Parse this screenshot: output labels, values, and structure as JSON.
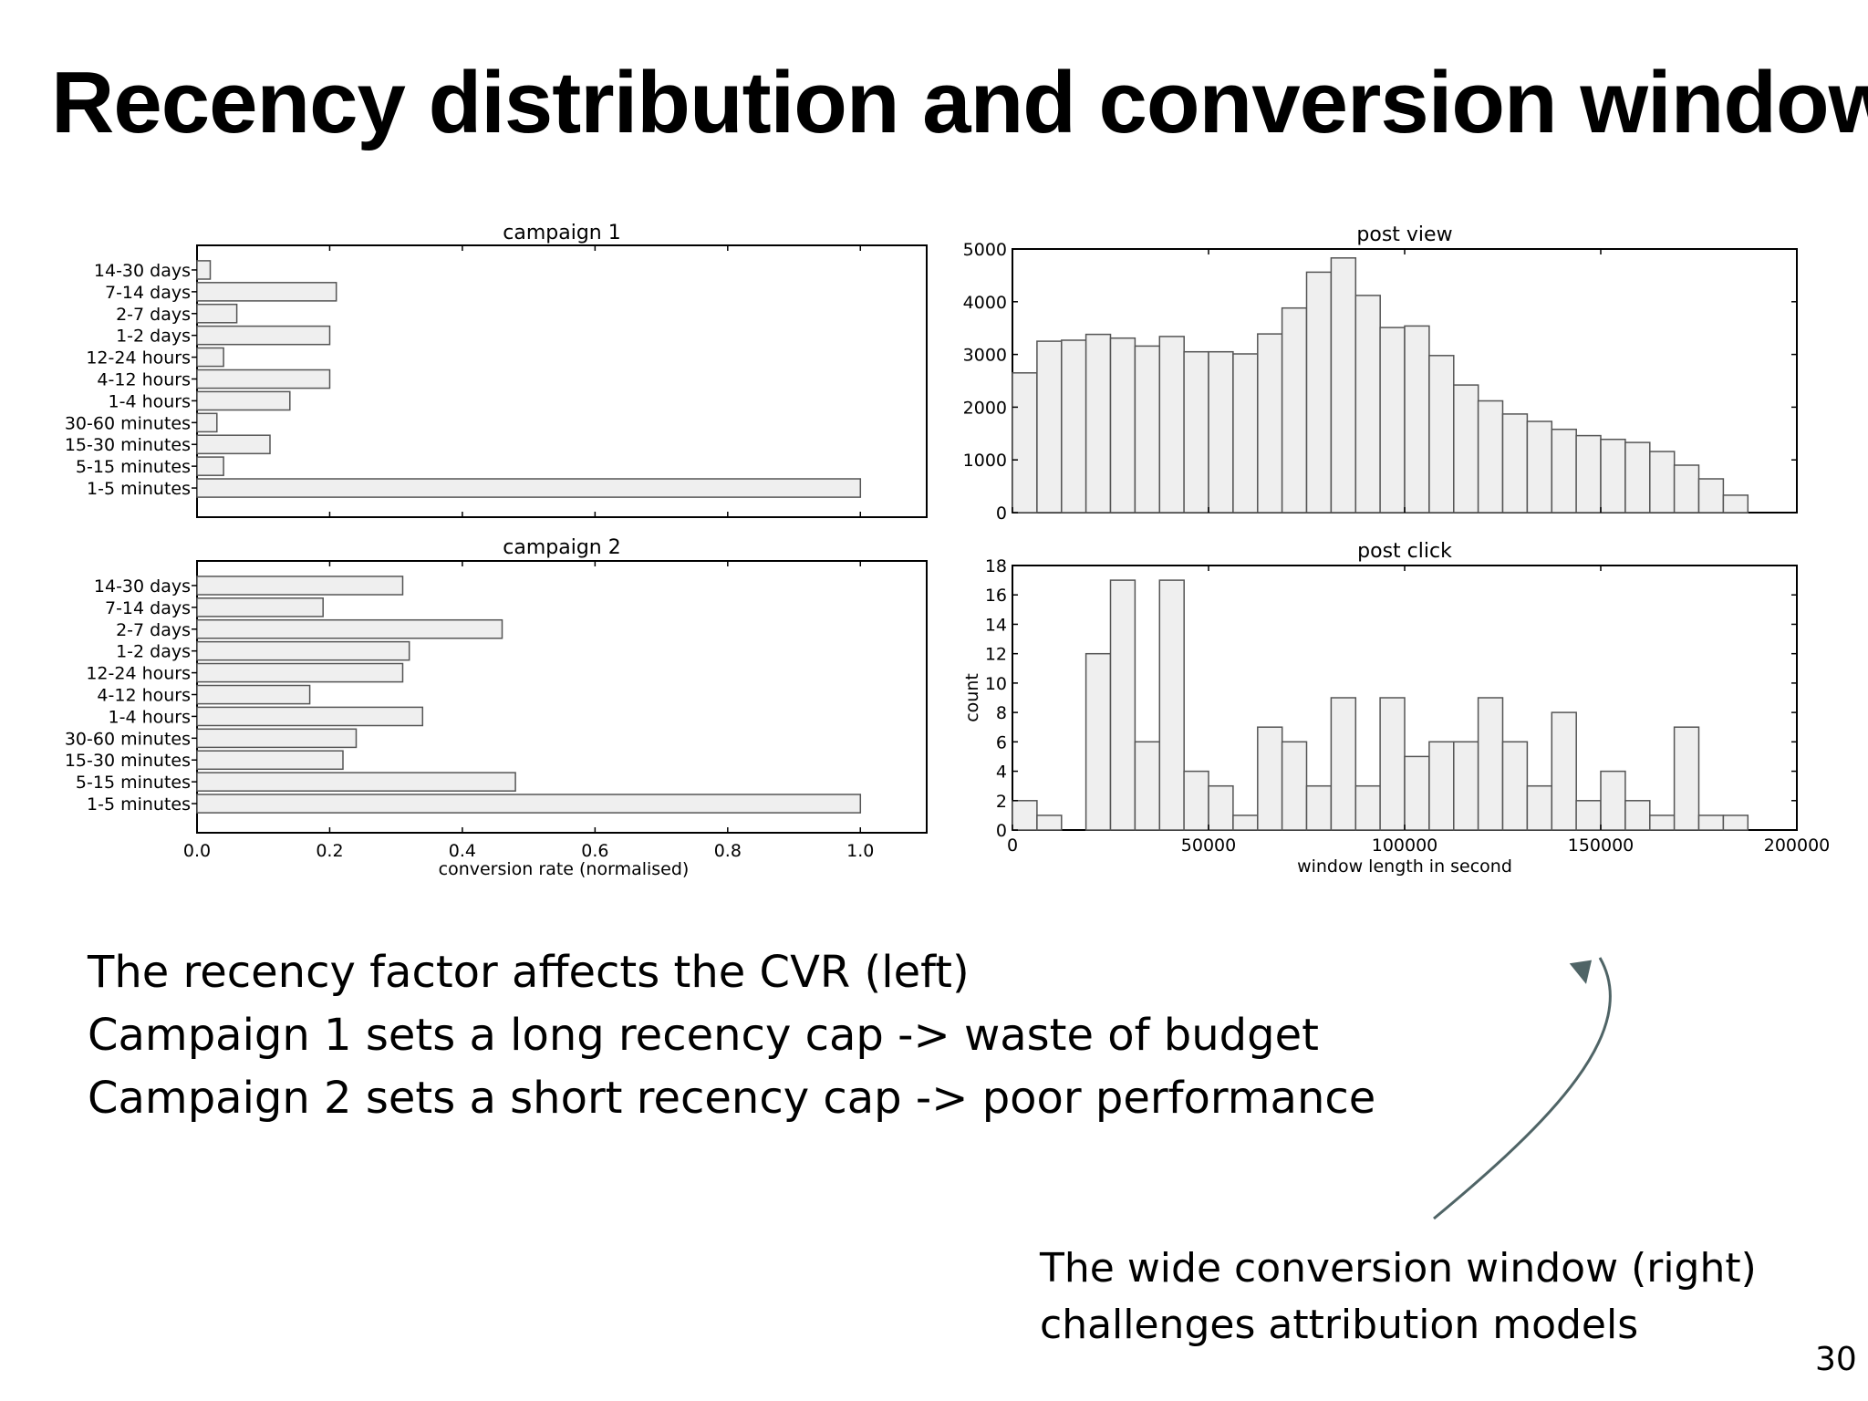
{
  "slide": {
    "title": "Recency distribution and conversion window",
    "body_lines": [
      "The recency factor affects the CVR (left)",
      "Campaign 1 sets a long recency cap -> waste of budget",
      "Campaign 2 sets a short recency cap -> poor performance"
    ],
    "note_lines": [
      "The wide conversion window (right)",
      "challenges attribution models"
    ],
    "page_number": "30"
  },
  "chart_data": [
    {
      "type": "bar",
      "orientation": "horizontal",
      "title": "campaign 1",
      "categories": [
        "14-30 days",
        "7-14 days",
        "2-7 days",
        "1-2 days",
        "12-24 hours",
        "4-12 hours",
        "1-4 hours",
        "30-60 minutes",
        "15-30 minutes",
        "5-15 minutes",
        "1-5 minutes"
      ],
      "values": [
        0.02,
        0.21,
        0.06,
        0.2,
        0.04,
        0.2,
        0.14,
        0.03,
        0.11,
        0.04,
        1.0
      ],
      "xlim": [
        0,
        1.1
      ],
      "xlabel": "",
      "ylabel": ""
    },
    {
      "type": "bar",
      "orientation": "horizontal",
      "title": "campaign 2",
      "categories": [
        "14-30 days",
        "7-14 days",
        "2-7 days",
        "1-2 days",
        "12-24 hours",
        "4-12 hours",
        "1-4 hours",
        "30-60 minutes",
        "15-30 minutes",
        "5-15 minutes",
        "1-5 minutes"
      ],
      "values": [
        0.31,
        0.19,
        0.46,
        0.32,
        0.31,
        0.17,
        0.34,
        0.24,
        0.22,
        0.48,
        1.0
      ],
      "xlim": [
        0,
        1.1
      ],
      "xticks": [
        "0.0",
        "0.2",
        "0.4",
        "0.6",
        "0.8",
        "1.0"
      ],
      "xlabel": "conversion rate (normalised)",
      "ylabel": ""
    },
    {
      "type": "bar",
      "subtype": "histogram",
      "title": "post view",
      "bin_width": 6250,
      "bins_start": 0,
      "values": [
        2650,
        3250,
        3270,
        3380,
        3310,
        3160,
        3340,
        3050,
        3050,
        3010,
        3390,
        3880,
        4560,
        4830,
        4120,
        3510,
        3540,
        2980,
        2420,
        2120,
        1870,
        1730,
        1580,
        1460,
        1390,
        1330,
        1160,
        900,
        640,
        330
      ],
      "xlim": [
        0,
        200000
      ],
      "ylim": [
        0,
        5000
      ],
      "yticks": [
        "0",
        "1000",
        "2000",
        "3000",
        "4000",
        "5000"
      ],
      "xlabel": "",
      "ylabel": ""
    },
    {
      "type": "bar",
      "subtype": "histogram",
      "title": "post click",
      "bin_width": 6250,
      "bins_start": 0,
      "values": [
        2,
        1,
        0,
        12,
        17,
        6,
        17,
        4,
        3,
        1,
        7,
        6,
        3,
        9,
        3,
        9,
        5,
        6,
        6,
        9,
        6,
        3,
        8,
        2,
        4,
        2,
        1,
        7,
        1,
        1
      ],
      "xlim": [
        0,
        200000
      ],
      "ylim": [
        0,
        18
      ],
      "xticks": [
        "0",
        "50000",
        "100000",
        "150000",
        "200000"
      ],
      "yticks": [
        "0",
        "2",
        "4",
        "6",
        "8",
        "10",
        "12",
        "14",
        "16",
        "18"
      ],
      "xlabel": "window length in second",
      "ylabel": "count"
    }
  ],
  "colors": {
    "bar_fill": "#efefef",
    "bar_stroke": "#555555",
    "arrow": "#4f6466"
  }
}
